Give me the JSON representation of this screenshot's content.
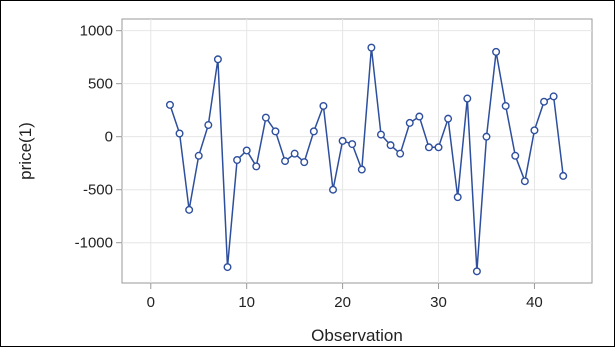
{
  "chart_data": {
    "type": "line",
    "title": "",
    "xlabel": "Observation",
    "ylabel": "price(1)",
    "xlim": [
      -3,
      46
    ],
    "ylim": [
      -1380,
      1110
    ],
    "xticks": [
      0,
      10,
      20,
      30,
      40
    ],
    "yticks": [
      1000,
      500,
      0,
      -500,
      -1000
    ],
    "xtick_labels": [
      "0",
      "10",
      "20",
      "30",
      "40"
    ],
    "ytick_labels": [
      "1000",
      "500",
      "0",
      "-500",
      "-1000"
    ],
    "grid": true,
    "legend": "none",
    "marker": "circle",
    "colors": {
      "line": "#2e4f9e",
      "marker": "#2e4f9e",
      "grid": "#e6e6e6",
      "axis": "#999999"
    },
    "series": [
      {
        "x": [
          2,
          3,
          4,
          5,
          6,
          7,
          8,
          9,
          10,
          11,
          12,
          13,
          14,
          15,
          16,
          17,
          18,
          19,
          20,
          21,
          22,
          23,
          24,
          25,
          26,
          27,
          28,
          29,
          30,
          31,
          32,
          33,
          34,
          35,
          36,
          37,
          38,
          39,
          40,
          41,
          42,
          43
        ],
        "y": [
          300,
          30,
          -690,
          -180,
          110,
          730,
          -1230,
          -220,
          -130,
          -280,
          180,
          50,
          -230,
          -160,
          -240,
          50,
          290,
          -500,
          -40,
          -70,
          -310,
          840,
          20,
          -80,
          -160,
          130,
          190,
          -100,
          -100,
          170,
          -570,
          360,
          -1270,
          0,
          800,
          290,
          -180,
          -420,
          60,
          330,
          380,
          -370
        ]
      }
    ]
  }
}
